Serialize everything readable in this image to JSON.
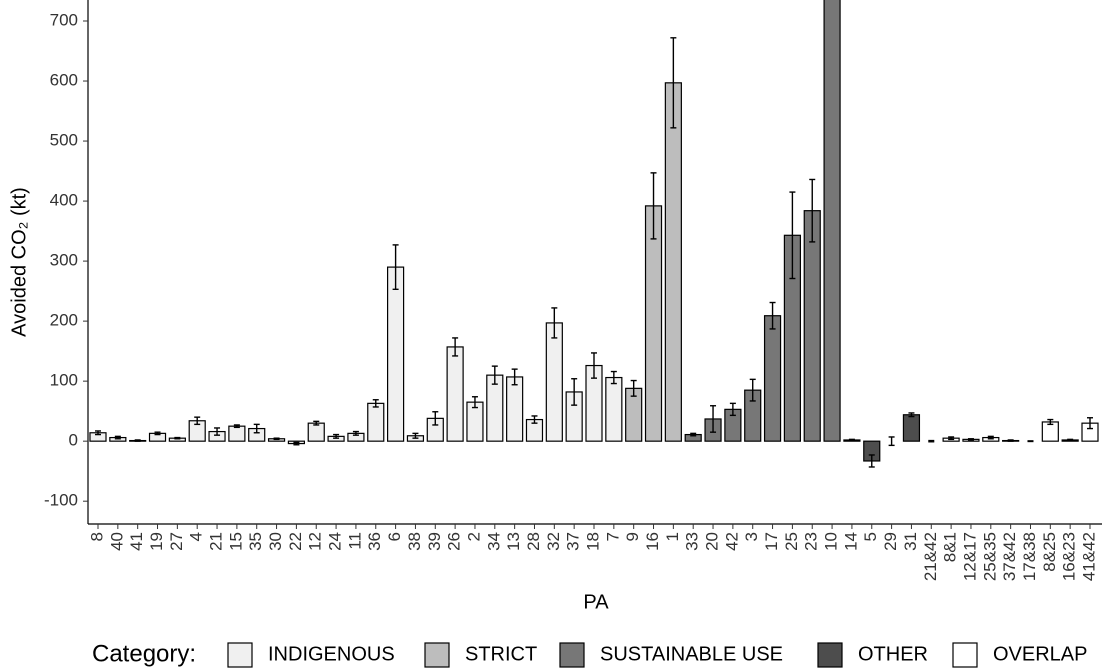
{
  "chart_data": {
    "type": "bar",
    "x_label": "PA",
    "y_label": "Avoided CO₂ (kt)",
    "legend_title": "Category:",
    "categories": [
      "8",
      "40",
      "41",
      "19",
      "27",
      "4",
      "21",
      "15",
      "35",
      "30",
      "22",
      "12",
      "24",
      "11",
      "36",
      "6",
      "38",
      "39",
      "26",
      "2",
      "34",
      "13",
      "28",
      "32",
      "37",
      "18",
      "7",
      "9",
      "16",
      "1",
      "33",
      "20",
      "42",
      "3",
      "17",
      "25",
      "23",
      "10",
      "14",
      "5",
      "29",
      "31",
      "21&42",
      "8&1",
      "12&17",
      "25&35",
      "37&42",
      "17&38",
      "8&25",
      "16&23",
      "41&42"
    ],
    "series": [
      {
        "name": "INDIGENOUS",
        "color": "#f0f0f0",
        "values": [
          14,
          6,
          1,
          13,
          5,
          34,
          16,
          25,
          21,
          4,
          -4,
          30,
          8,
          13,
          63,
          290,
          9,
          38,
          157,
          65,
          110,
          107,
          36,
          197,
          82,
          126,
          106,
          null,
          null,
          null,
          null,
          null,
          null,
          null,
          null,
          null,
          null,
          null,
          null,
          null,
          null,
          null,
          null,
          null,
          null,
          null,
          null,
          null,
          null,
          null,
          null
        ],
        "errors": [
          3,
          2,
          1,
          2,
          1,
          6,
          6,
          2,
          7,
          1,
          2,
          3,
          3,
          3,
          6,
          37,
          4,
          11,
          15,
          9,
          15,
          13,
          6,
          25,
          22,
          21,
          10,
          null,
          null,
          null,
          null,
          null,
          null,
          null,
          null,
          null,
          null,
          null,
          null,
          null,
          null,
          null,
          null,
          null,
          null,
          null,
          null,
          null,
          null,
          null,
          null
        ]
      },
      {
        "name": "STRICT",
        "color": "#bdbdbd",
        "values": [
          null,
          null,
          null,
          null,
          null,
          null,
          null,
          null,
          null,
          null,
          null,
          null,
          null,
          null,
          null,
          null,
          null,
          null,
          null,
          null,
          null,
          null,
          null,
          null,
          null,
          null,
          null,
          88,
          392,
          597,
          null,
          null,
          null,
          null,
          null,
          null,
          null,
          null,
          null,
          null,
          null,
          null,
          null,
          null,
          null,
          null,
          null,
          null,
          null,
          null,
          null
        ],
        "errors": [
          null,
          null,
          null,
          null,
          null,
          null,
          null,
          null,
          null,
          null,
          null,
          null,
          null,
          null,
          null,
          null,
          null,
          null,
          null,
          null,
          null,
          null,
          null,
          null,
          null,
          null,
          null,
          13,
          55,
          75,
          null,
          null,
          null,
          null,
          null,
          null,
          null,
          null,
          null,
          null,
          null,
          null,
          null,
          null,
          null,
          null,
          null,
          null,
          null,
          null,
          null
        ]
      },
      {
        "name": "SUSTAINABLE USE",
        "color": "#777777",
        "values": [
          null,
          null,
          null,
          null,
          null,
          null,
          null,
          null,
          null,
          null,
          null,
          null,
          null,
          null,
          null,
          null,
          null,
          null,
          null,
          null,
          null,
          null,
          null,
          null,
          null,
          null,
          null,
          null,
          null,
          null,
          11,
          37,
          53,
          85,
          209,
          343,
          384,
          780,
          null,
          null,
          null,
          null,
          null,
          null,
          null,
          null,
          null,
          null,
          null,
          null,
          null
        ],
        "errors": [
          null,
          null,
          null,
          null,
          null,
          null,
          null,
          null,
          null,
          null,
          null,
          null,
          null,
          null,
          null,
          null,
          null,
          null,
          null,
          null,
          null,
          null,
          null,
          null,
          null,
          null,
          null,
          null,
          null,
          null,
          2,
          22,
          10,
          18,
          22,
          72,
          52,
          40,
          null,
          null,
          null,
          null,
          null,
          null,
          null,
          null,
          null,
          null,
          null,
          null,
          null
        ]
      },
      {
        "name": "OTHER",
        "color": "#4d4d4d",
        "values": [
          null,
          null,
          null,
          null,
          null,
          null,
          null,
          null,
          null,
          null,
          null,
          null,
          null,
          null,
          null,
          null,
          null,
          null,
          null,
          null,
          null,
          null,
          null,
          null,
          null,
          null,
          null,
          null,
          null,
          null,
          null,
          null,
          null,
          null,
          null,
          null,
          null,
          null,
          2,
          -33,
          0,
          44,
          null,
          null,
          null,
          null,
          null,
          null,
          null,
          null,
          null
        ],
        "errors": [
          null,
          null,
          null,
          null,
          null,
          null,
          null,
          null,
          null,
          null,
          null,
          null,
          null,
          null,
          null,
          null,
          null,
          null,
          null,
          null,
          null,
          null,
          null,
          null,
          null,
          null,
          null,
          null,
          null,
          null,
          null,
          null,
          null,
          null,
          null,
          null,
          null,
          null,
          1,
          10,
          7,
          3,
          null,
          null,
          null,
          null,
          null,
          null,
          null,
          null,
          null
        ]
      },
      {
        "name": "OVERLAP",
        "color": "#ffffff",
        "values": [
          null,
          null,
          null,
          null,
          null,
          null,
          null,
          null,
          null,
          null,
          null,
          null,
          null,
          null,
          null,
          null,
          null,
          null,
          null,
          null,
          null,
          null,
          null,
          null,
          null,
          null,
          null,
          null,
          null,
          null,
          null,
          null,
          null,
          null,
          null,
          null,
          null,
          null,
          null,
          null,
          null,
          null,
          0,
          5,
          3,
          6,
          1,
          0,
          32,
          2,
          30
        ],
        "errors": [
          null,
          null,
          null,
          null,
          null,
          null,
          null,
          null,
          null,
          null,
          null,
          null,
          null,
          null,
          null,
          null,
          null,
          null,
          null,
          null,
          null,
          null,
          null,
          null,
          null,
          null,
          null,
          null,
          null,
          null,
          null,
          null,
          null,
          null,
          null,
          null,
          null,
          null,
          null,
          null,
          null,
          null,
          1,
          2,
          1,
          2,
          1,
          0.5,
          4,
          1,
          9
        ]
      }
    ],
    "ylim": [
      -138,
      735
    ],
    "yticks": [
      -100,
      0,
      100,
      200,
      300,
      400,
      500,
      600,
      700
    ]
  }
}
